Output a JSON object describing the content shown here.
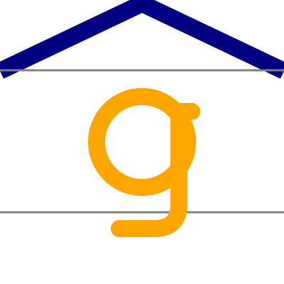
{
  "colors": {
    "background": "#ffffff",
    "roof": "#000080",
    "letter": "#ffa500",
    "guideline": "#808080"
  },
  "icons": {
    "roof": "roof-chevron-icon",
    "letter": "letter-g-glyph"
  }
}
